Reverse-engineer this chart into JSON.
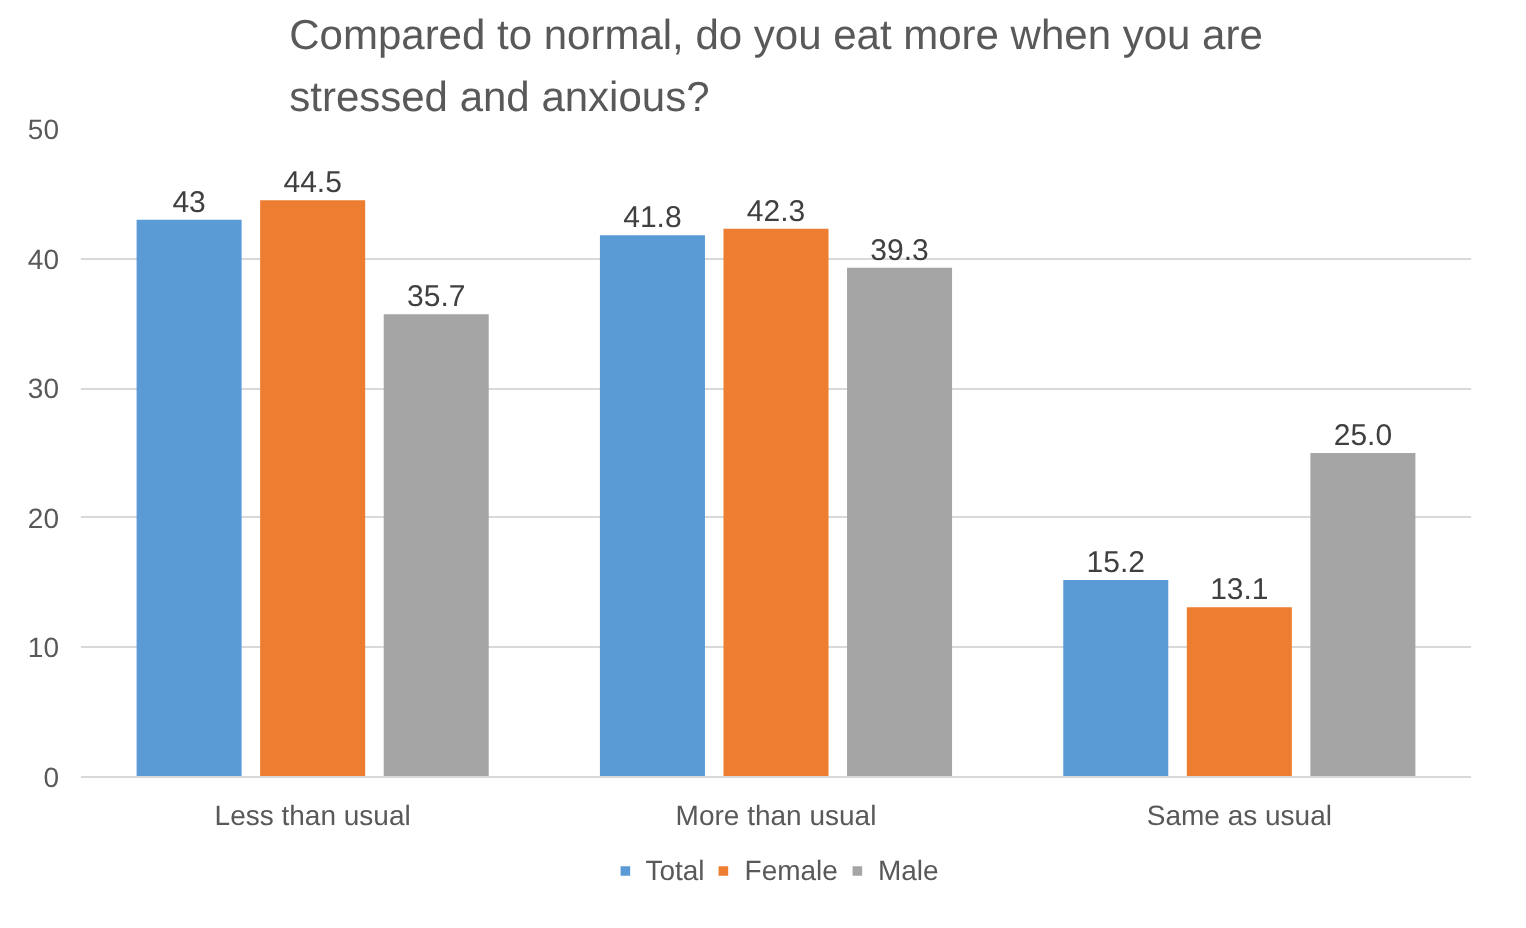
{
  "chart_data": {
    "type": "bar",
    "title": "Compared to normal, do you eat more when you are stressed and anxious?",
    "categories": [
      "Less than usual",
      "More than usual",
      "Same as usual"
    ],
    "series": [
      {
        "name": "Total",
        "color": "#5b9bd5",
        "values": [
          43,
          41.8,
          15.2
        ],
        "value_labels": [
          "43",
          "41.8",
          "15.2"
        ]
      },
      {
        "name": "Female",
        "color": "#ed7d31",
        "values": [
          44.5,
          42.3,
          13.1
        ],
        "value_labels": [
          "44.5",
          "42.3",
          "13.1"
        ]
      },
      {
        "name": "Male",
        "color": "#a5a5a5",
        "values": [
          35.7,
          39.3,
          25.0
        ],
        "value_labels": [
          "35.7",
          "39.3",
          "25.0"
        ]
      }
    ],
    "ylim": [
      0,
      50
    ],
    "yticks": [
      0,
      10,
      20,
      30,
      40,
      50
    ],
    "grid": "y",
    "legend": "bottom"
  }
}
